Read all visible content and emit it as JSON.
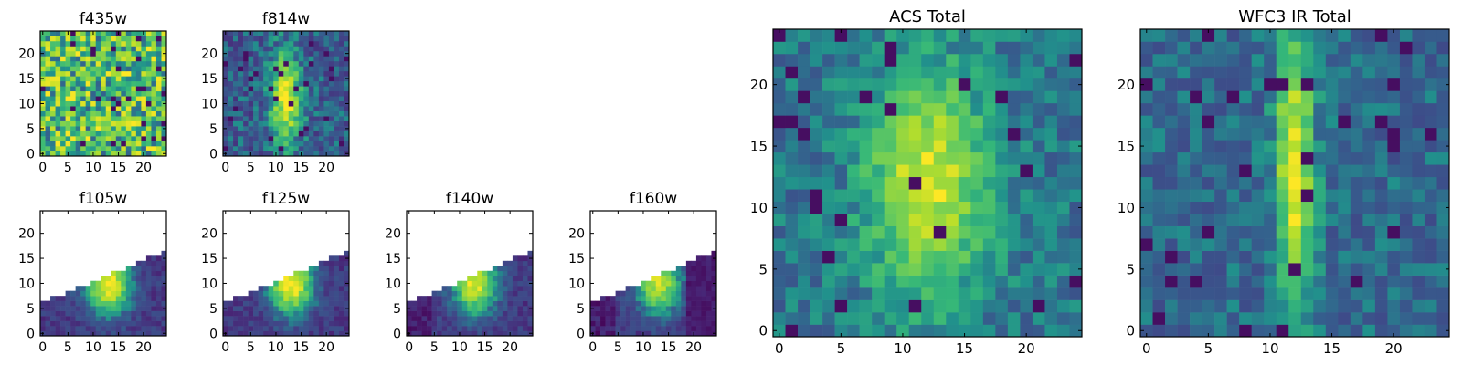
{
  "palette": {
    "colormap": "viridis",
    "frame": "#000000",
    "background": "#ffffff",
    "no_data": "#ffffff"
  },
  "chart_data": [
    {
      "type": "heatmap",
      "title": "f435w",
      "grid": false,
      "xlim": [
        -0.5,
        24.5
      ],
      "ylim": [
        -0.5,
        24.5
      ],
      "xticks": [
        0,
        5,
        10,
        15,
        20
      ],
      "yticks": [
        0,
        5,
        10,
        15,
        20
      ],
      "pattern": "uniform noise, no visible source",
      "mask": "none"
    },
    {
      "type": "heatmap",
      "title": "f814w",
      "grid": false,
      "xlim": [
        -0.5,
        24.5
      ],
      "ylim": [
        -0.5,
        24.5
      ],
      "xticks": [
        0,
        5,
        10,
        15,
        20
      ],
      "yticks": [
        0,
        5,
        10,
        15,
        20
      ],
      "pattern": "bright elongated source centered near x=12, y=11",
      "mask": "none"
    },
    {
      "type": "heatmap",
      "title": "f105w",
      "grid": false,
      "xlim": [
        -0.5,
        24.5
      ],
      "ylim": [
        -0.5,
        24.5
      ],
      "xticks": [
        0,
        5,
        10,
        15,
        20
      ],
      "yticks": [
        0,
        5,
        10,
        15,
        20
      ],
      "pattern": "source near x=13, y=10; no data above a rising diagonal edge",
      "mask": "upper region empty"
    },
    {
      "type": "heatmap",
      "title": "f125w",
      "grid": false,
      "xlim": [
        -0.5,
        24.5
      ],
      "ylim": [
        -0.5,
        24.5
      ],
      "xticks": [
        0,
        5,
        10,
        15,
        20
      ],
      "yticks": [
        0,
        5,
        10,
        15,
        20
      ],
      "pattern": "source near x=13, y=10; no data above a rising diagonal edge",
      "mask": "upper region empty"
    },
    {
      "type": "heatmap",
      "title": "f140w",
      "grid": false,
      "xlim": [
        -0.5,
        24.5
      ],
      "ylim": [
        -0.5,
        24.5
      ],
      "xticks": [
        0,
        5,
        10,
        15,
        20
      ],
      "yticks": [
        0,
        5,
        10,
        15,
        20
      ],
      "pattern": "source near x=13, y=10; no data above a rising diagonal edge",
      "mask": "upper region empty"
    },
    {
      "type": "heatmap",
      "title": "f160w",
      "grid": false,
      "xlim": [
        -0.5,
        24.5
      ],
      "ylim": [
        -0.5,
        24.5
      ],
      "xticks": [
        0,
        5,
        10,
        15,
        20
      ],
      "yticks": [
        0,
        5,
        10,
        15,
        20
      ],
      "pattern": "source near x=12, y=10; no data above a rising diagonal edge",
      "mask": "upper region empty"
    },
    {
      "type": "heatmap",
      "title": "ACS Total",
      "grid": false,
      "xlim": [
        -0.5,
        24.5
      ],
      "ylim": [
        -0.5,
        24.5
      ],
      "xticks": [
        0,
        5,
        10,
        15,
        20
      ],
      "yticks": [
        0,
        5,
        10,
        15,
        20
      ],
      "pattern": "broad bright source centered near x=12, y=12",
      "mask": "none"
    },
    {
      "type": "heatmap",
      "title": "WFC3 IR Total",
      "grid": false,
      "xlim": [
        -0.5,
        24.5
      ],
      "ylim": [
        -0.5,
        24.5
      ],
      "xticks": [
        0,
        5,
        10,
        15,
        20
      ],
      "yticks": [
        0,
        5,
        10,
        15,
        20
      ],
      "pattern": "narrow vertical bright stripe near x=12",
      "mask": "none"
    }
  ]
}
